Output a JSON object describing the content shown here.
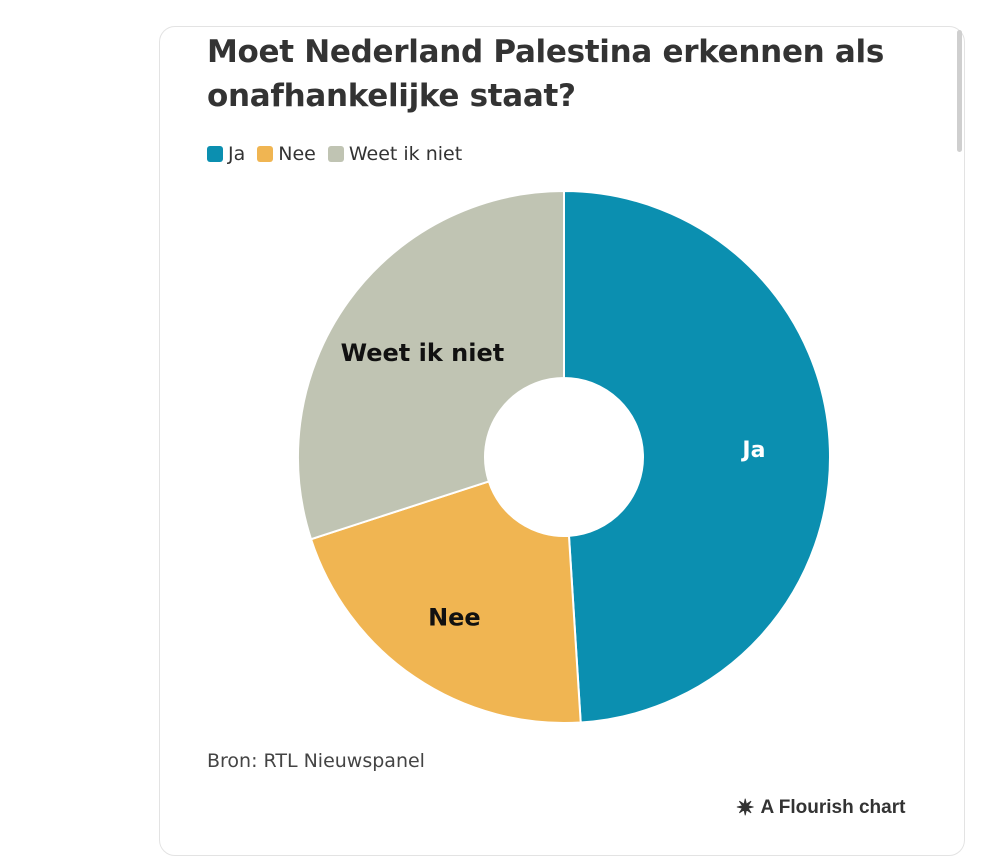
{
  "chart_data": {
    "type": "pie",
    "title": "Moet Nederland Palestina erkennen als onafhankelijke staat?",
    "categories": [
      "Ja",
      "Nee",
      "Weet ik niet"
    ],
    "values": [
      49,
      21,
      30
    ],
    "colors": [
      "#0b8fb0",
      "#f0b552",
      "#c0c4b3"
    ],
    "donut": true,
    "legend_position": "top-left",
    "labels": [
      "Ja",
      "Nee",
      "Weet ik niet"
    ],
    "source": "Bron: RTL Nieuwspanel"
  },
  "legend": {
    "items": [
      {
        "label": "Ja",
        "color": "#0b8fb0"
      },
      {
        "label": "Nee",
        "color": "#f0b552"
      },
      {
        "label": "Weet ik niet",
        "color": "#c0c4b3"
      }
    ]
  },
  "footer": {
    "source": "Bron: RTL Nieuwspanel",
    "credit": "A Flourish chart",
    "credit_icon": "asterisk-icon"
  }
}
